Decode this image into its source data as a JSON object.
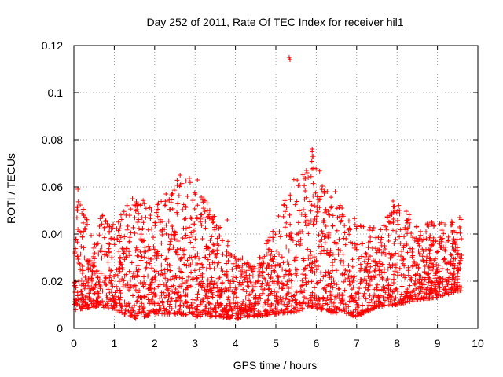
{
  "chart_data": {
    "type": "scatter",
    "title": "Day 252 of 2011, Rate Of TEC Index for receiver hil1",
    "xlabel": "GPS time / hours",
    "ylabel": "ROTI / TECUs",
    "xlim": [
      0,
      10
    ],
    "ylim": [
      0,
      0.12
    ],
    "xticks": [
      "0",
      "1",
      "2",
      "3",
      "4",
      "5",
      "6",
      "7",
      "8",
      "9",
      "10"
    ],
    "yticks": [
      "0",
      "0.02",
      "0.04",
      "0.06",
      "0.08",
      "0.1",
      "0.12"
    ],
    "grid": true,
    "marker": "+",
    "color": "#ff0000",
    "series": [
      {
        "name": "hil1",
        "envelope": [
          {
            "x": 0.0,
            "low": 0.007,
            "high": 0.035
          },
          {
            "x": 0.1,
            "low": 0.008,
            "high": 0.06
          },
          {
            "x": 0.5,
            "low": 0.009,
            "high": 0.035
          },
          {
            "x": 0.7,
            "low": 0.009,
            "high": 0.05
          },
          {
            "x": 1.0,
            "low": 0.008,
            "high": 0.046
          },
          {
            "x": 1.5,
            "low": 0.004,
            "high": 0.056
          },
          {
            "x": 2.0,
            "low": 0.006,
            "high": 0.052
          },
          {
            "x": 2.6,
            "low": 0.006,
            "high": 0.065
          },
          {
            "x": 3.0,
            "low": 0.005,
            "high": 0.063
          },
          {
            "x": 3.5,
            "low": 0.005,
            "high": 0.047
          },
          {
            "x": 4.0,
            "low": 0.004,
            "high": 0.031
          },
          {
            "x": 4.5,
            "low": 0.005,
            "high": 0.028
          },
          {
            "x": 5.0,
            "low": 0.006,
            "high": 0.045
          },
          {
            "x": 5.5,
            "low": 0.007,
            "high": 0.066
          },
          {
            "x": 5.9,
            "low": 0.009,
            "high": 0.076
          },
          {
            "x": 6.3,
            "low": 0.007,
            "high": 0.058
          },
          {
            "x": 7.0,
            "low": 0.005,
            "high": 0.046
          },
          {
            "x": 7.5,
            "low": 0.009,
            "high": 0.044
          },
          {
            "x": 8.0,
            "low": 0.01,
            "high": 0.054
          },
          {
            "x": 8.5,
            "low": 0.012,
            "high": 0.045
          },
          {
            "x": 9.0,
            "low": 0.013,
            "high": 0.045
          },
          {
            "x": 9.6,
            "low": 0.016,
            "high": 0.047
          }
        ],
        "points": [
          {
            "x": 5.33,
            "y": 0.115
          },
          {
            "x": 5.35,
            "y": 0.114
          },
          {
            "x": 5.9,
            "y": 0.076
          },
          {
            "x": 5.93,
            "y": 0.073
          },
          {
            "x": 5.77,
            "y": 0.066
          },
          {
            "x": 5.8,
            "y": 0.064
          },
          {
            "x": 2.63,
            "y": 0.065
          },
          {
            "x": 3.06,
            "y": 0.063
          },
          {
            "x": 0.1,
            "y": 0.059
          },
          {
            "x": 0.09,
            "y": 0.05
          },
          {
            "x": 6.27,
            "y": 0.058
          },
          {
            "x": 6.47,
            "y": 0.058
          },
          {
            "x": 7.9,
            "y": 0.054
          },
          {
            "x": 9.55,
            "y": 0.047
          },
          {
            "x": 9.55,
            "y": 0.043
          },
          {
            "x": 8.85,
            "y": 0.045
          },
          {
            "x": 8.9,
            "y": 0.037
          },
          {
            "x": 9.6,
            "y": 0.031
          },
          {
            "x": 8.8,
            "y": 0.021
          },
          {
            "x": 8.8,
            "y": 0.016
          },
          {
            "x": 9.5,
            "y": 0.018
          },
          {
            "x": 1.45,
            "y": 0.055
          },
          {
            "x": 3.8,
            "y": 0.046
          },
          {
            "x": 3.3,
            "y": 0.047
          },
          {
            "x": 3.9,
            "y": 0.031
          },
          {
            "x": 4.3,
            "y": 0.028
          }
        ]
      }
    ]
  }
}
